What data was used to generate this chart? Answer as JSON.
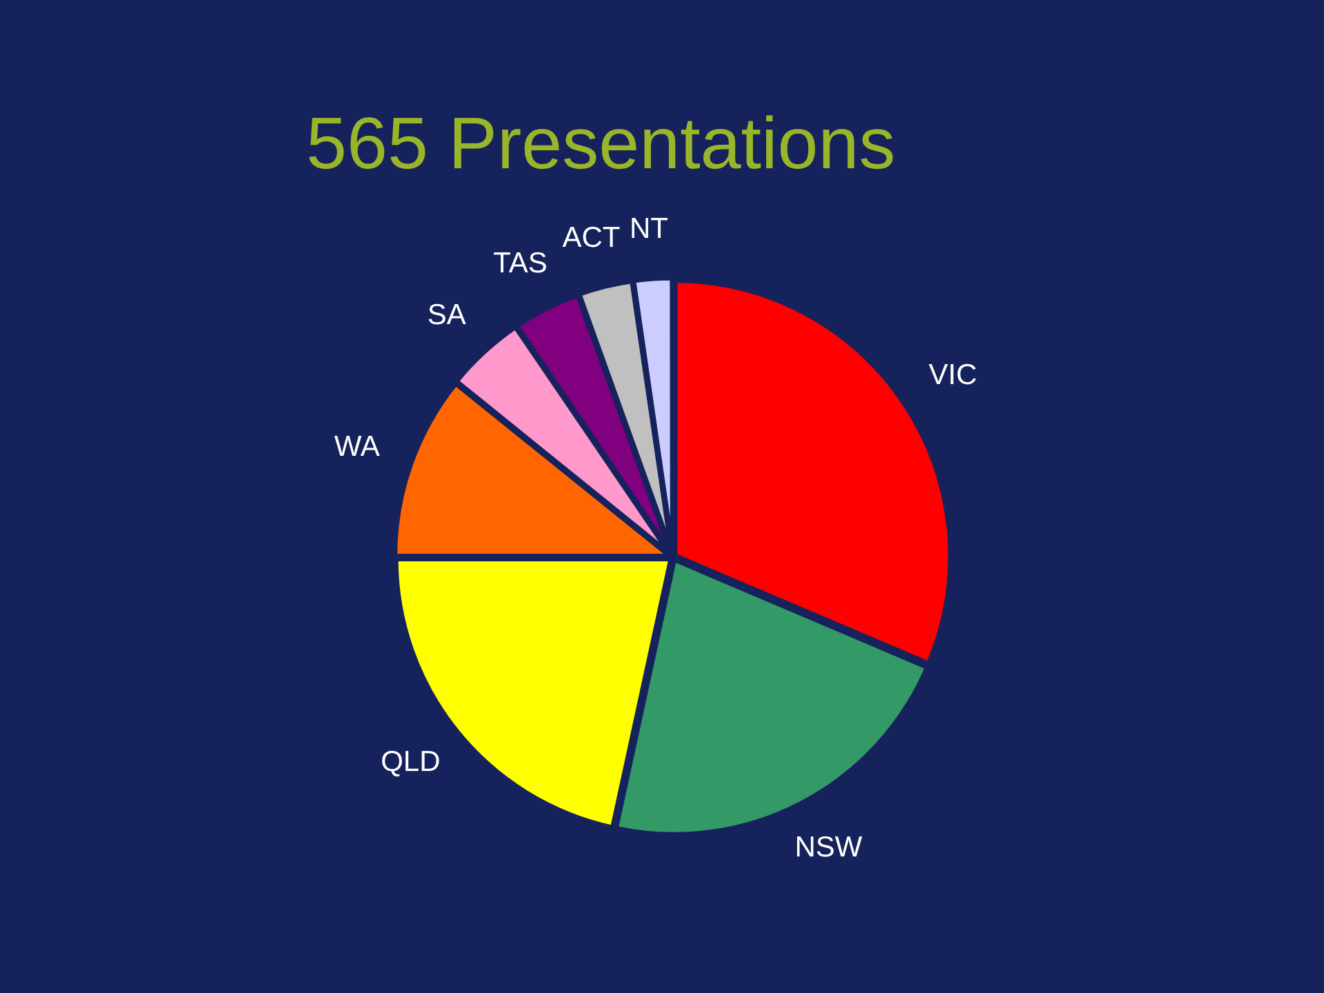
{
  "chart_data": {
    "type": "pie",
    "title": "565 Presentations",
    "categories": [
      "VIC",
      "NSW",
      "QLD",
      "WA",
      "SA",
      "TAS",
      "ACT",
      "NT"
    ],
    "values": [
      31.4,
      22,
      21.6,
      10.8,
      4.7,
      4,
      3.2,
      2.3
    ],
    "colors": [
      "#ff0000",
      "#339966",
      "#ffff00",
      "#ff6600",
      "#ff99cc",
      "#800080",
      "#c0c0c0",
      "#ccccff"
    ]
  }
}
